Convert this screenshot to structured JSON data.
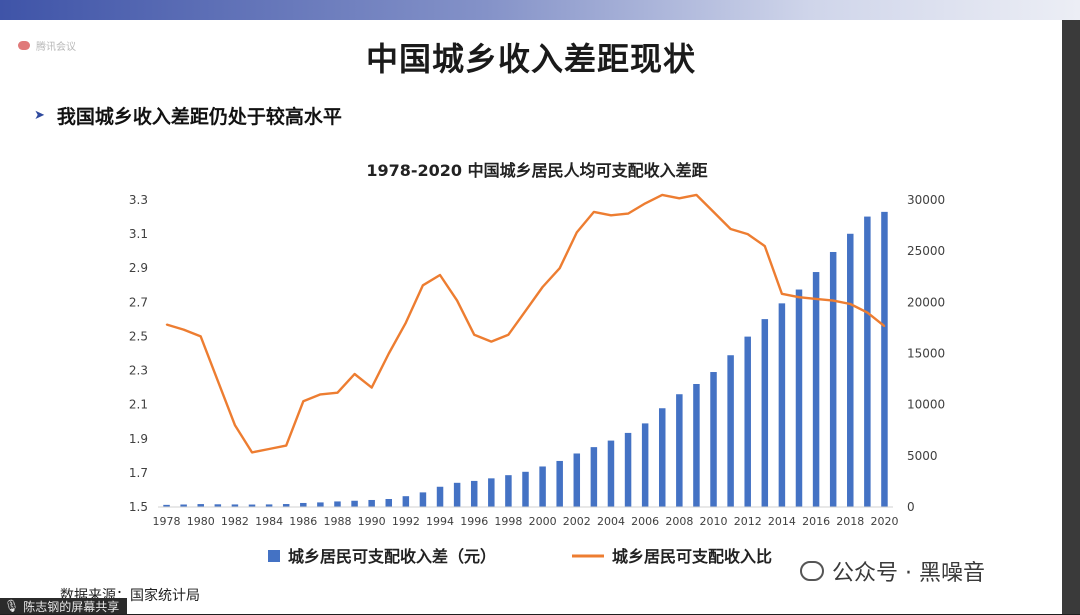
{
  "slide": {
    "title": "中国城乡收入差距现状",
    "bullet": "我国城乡收入差距仍处于较高水平",
    "source": "数据来源：国家统计局",
    "cloud_label": "腾讯会议"
  },
  "overlay": {
    "screen_share_label": "陈志钢的屏幕共享",
    "watermark": "公众号 · 黑噪音"
  },
  "colors": {
    "bar": "#4472c4",
    "line": "#ed7d31",
    "axis_text": "#404040"
  },
  "chart_data": {
    "type": "bar",
    "title": "1978-2020 中国城乡居民人均可支配收入差距",
    "x": [
      1978,
      1979,
      1980,
      1981,
      1982,
      1983,
      1984,
      1985,
      1986,
      1987,
      1988,
      1989,
      1990,
      1991,
      1992,
      1993,
      1994,
      1995,
      1996,
      1997,
      1998,
      1999,
      2000,
      2001,
      2002,
      2003,
      2004,
      2005,
      2006,
      2007,
      2008,
      2009,
      2010,
      2011,
      2012,
      2013,
      2014,
      2015,
      2016,
      2017,
      2018,
      2019,
      2020
    ],
    "x_tick_labels": [
      "1978",
      "1980",
      "1982",
      "1984",
      "1986",
      "1988",
      "1990",
      "1992",
      "1994",
      "1996",
      "1998",
      "2000",
      "2002",
      "2004",
      "2006",
      "2008",
      "2010",
      "2012",
      "2014",
      "2016",
      "2018",
      "2020"
    ],
    "left_axis": {
      "ylim": [
        1.5,
        3.3
      ],
      "ticks": [
        "1.5",
        "1.7",
        "1.9",
        "2.1",
        "2.3",
        "2.5",
        "2.7",
        "2.9",
        "3.1",
        "3.3"
      ]
    },
    "right_axis": {
      "ylim": [
        0,
        30000
      ],
      "ticks": [
        "0",
        "5000",
        "10000",
        "15000",
        "20000",
        "25000",
        "30000"
      ]
    },
    "series": [
      {
        "name": "城乡居民可支配收入差（元）",
        "kind": "bar",
        "axis": "right",
        "values": [
          209,
          244,
          286,
          264,
          250,
          240,
          253,
          290,
          394,
          449,
          544,
          611,
          686,
          782,
          1056,
          1428,
          1978,
          2364,
          2549,
          2800,
          3110,
          3440,
          3960,
          4500,
          5230,
          5850,
          6490,
          7240,
          8170,
          9650,
          11020,
          12020,
          13190,
          14830,
          16650,
          18360,
          19900,
          21250,
          22960,
          24920,
          26700,
          28380,
          28840
        ]
      },
      {
        "name": "城乡居民可支配收入比",
        "kind": "line",
        "axis": "left",
        "values": [
          2.57,
          2.54,
          2.5,
          2.24,
          1.98,
          1.82,
          1.84,
          1.86,
          2.12,
          2.16,
          2.17,
          2.28,
          2.2,
          2.4,
          2.58,
          2.8,
          2.86,
          2.71,
          2.51,
          2.47,
          2.51,
          2.65,
          2.79,
          2.9,
          3.11,
          3.23,
          3.21,
          3.22,
          3.28,
          3.33,
          3.31,
          3.33,
          3.23,
          3.13,
          3.1,
          3.03,
          2.75,
          2.73,
          2.72,
          2.71,
          2.69,
          2.64,
          2.56
        ]
      }
    ]
  }
}
